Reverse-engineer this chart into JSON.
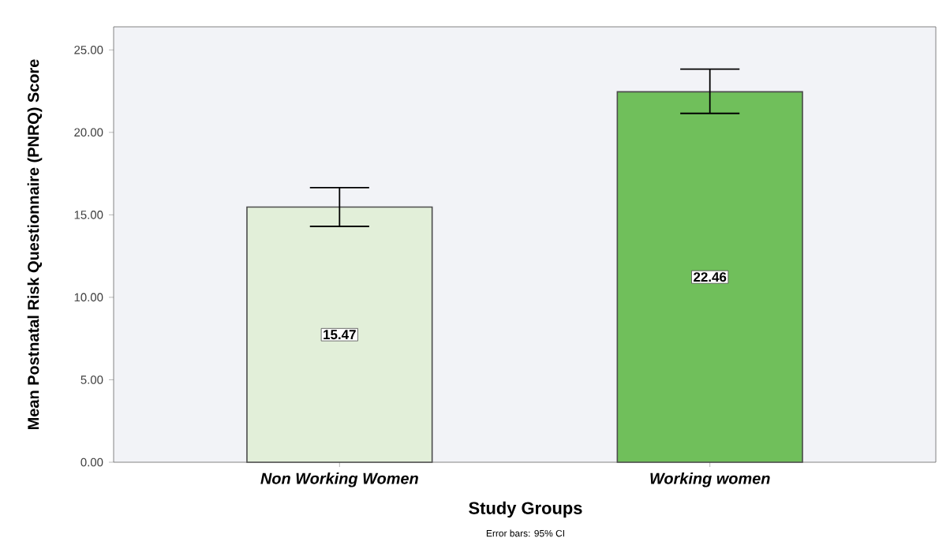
{
  "chart_data": {
    "type": "bar",
    "categories": [
      "Non Working Women",
      "Working women"
    ],
    "values": [
      15.47,
      22.46
    ],
    "colors": [
      "#e2efd9",
      "#70bf5b"
    ],
    "errors": [
      [
        14.3,
        16.65
      ],
      [
        21.15,
        23.83
      ]
    ],
    "data_labels": true,
    "xlabel": "Study Groups",
    "ylabel": "Mean Postnatal Risk Questionnaire (PNRQ) Score",
    "ylim": [
      0,
      26.4
    ],
    "yticks": [
      {
        "value": 0,
        "label": "0.00"
      },
      {
        "value": 5,
        "label": "5.00"
      },
      {
        "value": 10,
        "label": "10.00"
      },
      {
        "value": 15,
        "label": "15.00"
      },
      {
        "value": 20,
        "label": "20.00"
      },
      {
        "value": 25,
        "label": "25.00"
      }
    ],
    "annotations": [
      "Error bars: 95% CI"
    ],
    "grid": false
  }
}
